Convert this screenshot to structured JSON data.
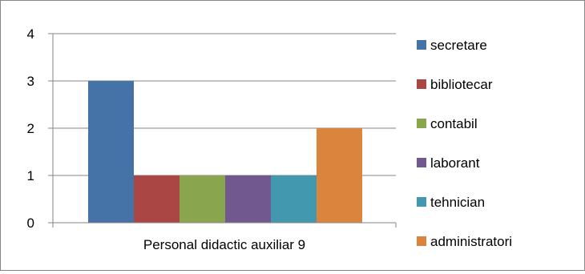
{
  "chart_data": {
    "type": "bar",
    "categories": [
      "Personal didactic auxiliar 9"
    ],
    "series": [
      {
        "name": "secretare",
        "values": [
          3
        ],
        "color": "#4572A7"
      },
      {
        "name": "bibliotecar",
        "values": [
          1
        ],
        "color": "#AA4643"
      },
      {
        "name": "contabil",
        "values": [
          1
        ],
        "color": "#89A54E"
      },
      {
        "name": "laborant",
        "values": [
          1
        ],
        "color": "#71588F"
      },
      {
        "name": "tehnician",
        "values": [
          1
        ],
        "color": "#4198AF"
      },
      {
        "name": "administratori",
        "values": [
          2
        ],
        "color": "#DB843D"
      }
    ],
    "yticks": [
      "0",
      "1",
      "2",
      "3",
      "4"
    ],
    "ylim": [
      0,
      4
    ],
    "grid": true,
    "legend_position": "right",
    "title": "",
    "xlabel": "",
    "ylabel": ""
  }
}
